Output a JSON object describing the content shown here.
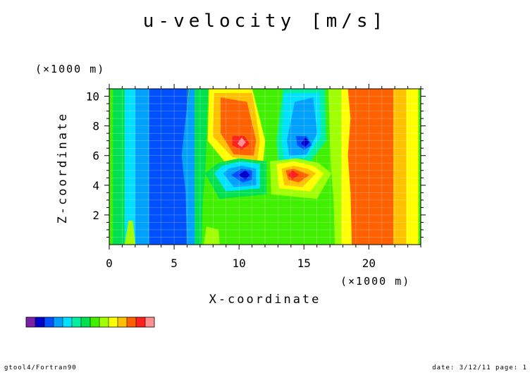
{
  "chart_data": {
    "type": "heatmap",
    "title": "u-velocity [m/s]",
    "xlabel": "X-coordinate",
    "ylabel": "Z-coordinate",
    "x_unit": "(×1000 m)",
    "y_unit": "(×1000 m)",
    "xlim": [
      0,
      24
    ],
    "ylim": [
      0,
      10.5
    ],
    "x_ticks": [
      "0",
      "5",
      "10",
      "15",
      "20"
    ],
    "y_ticks": [
      "2",
      "4",
      "6",
      "8",
      "10"
    ],
    "grid": true,
    "palette": [
      "#7a1fa8",
      "#0000c8",
      "#0050ff",
      "#00a0ff",
      "#00e0ff",
      "#00f0a0",
      "#00e050",
      "#40f000",
      "#a0ff00",
      "#ffff00",
      "#ffc000",
      "#ff6000",
      "#ff2020",
      "#ff9090"
    ],
    "background_level": 7,
    "regions": [
      {
        "level": 6,
        "points": [
          [
            0.3,
            0
          ],
          [
            1.4,
            0
          ],
          [
            1.4,
            10.5
          ],
          [
            0.3,
            10.5
          ]
        ]
      },
      {
        "level": 4,
        "points": [
          [
            1.2,
            0
          ],
          [
            2.2,
            0
          ],
          [
            2.2,
            10.5
          ],
          [
            1.2,
            10.5
          ]
        ]
      },
      {
        "level": 3,
        "points": [
          [
            2.0,
            0
          ],
          [
            3.2,
            0
          ],
          [
            3.2,
            10.5
          ],
          [
            2.0,
            10.5
          ]
        ]
      },
      {
        "level": 2,
        "points": [
          [
            3.1,
            0
          ],
          [
            6.0,
            0
          ],
          [
            5.9,
            3.5
          ],
          [
            5.6,
            6
          ],
          [
            5.9,
            8.5
          ],
          [
            6.1,
            10.5
          ],
          [
            3.1,
            10.5
          ]
        ]
      },
      {
        "level": 3,
        "points": [
          [
            6.0,
            0
          ],
          [
            6.7,
            0
          ],
          [
            6.7,
            10.5
          ],
          [
            6.2,
            10.5
          ],
          [
            5.9,
            8.5
          ],
          [
            5.6,
            6
          ],
          [
            5.9,
            3.5
          ]
        ]
      },
      {
        "level": 6,
        "points": [
          [
            6.6,
            0
          ],
          [
            7.1,
            0
          ],
          [
            7.2,
            3
          ],
          [
            7.4,
            5.2
          ],
          [
            7.6,
            10.5
          ],
          [
            6.6,
            10.5
          ]
        ]
      },
      {
        "level": 8,
        "points": [
          [
            17.4,
            0
          ],
          [
            17.9,
            0
          ],
          [
            17.9,
            10.5
          ],
          [
            16.9,
            10.5
          ],
          [
            17.1,
            5.2
          ],
          [
            17.3,
            3
          ]
        ]
      },
      {
        "level": 9,
        "points": [
          [
            17.9,
            0
          ],
          [
            18.7,
            0
          ],
          [
            18.6,
            3.5
          ],
          [
            18.4,
            6
          ],
          [
            18.6,
            8.5
          ],
          [
            18.4,
            10.5
          ],
          [
            17.9,
            10.5
          ]
        ]
      },
      {
        "level": 11,
        "points": [
          [
            18.7,
            0
          ],
          [
            21.9,
            0
          ],
          [
            21.9,
            10.5
          ],
          [
            18.4,
            10.5
          ],
          [
            18.6,
            8.5
          ],
          [
            18.4,
            6
          ],
          [
            18.6,
            3.5
          ]
        ]
      },
      {
        "level": 10,
        "points": [
          [
            21.9,
            0
          ],
          [
            22.9,
            0
          ],
          [
            22.9,
            10.5
          ],
          [
            21.9,
            10.5
          ]
        ]
      },
      {
        "level": 9,
        "points": [
          [
            22.9,
            0
          ],
          [
            23.8,
            0
          ],
          [
            23.8,
            10.5
          ],
          [
            22.9,
            10.5
          ]
        ]
      },
      {
        "level": 8,
        "points": [
          [
            1.2,
            0
          ],
          [
            2.0,
            0
          ],
          [
            1.8,
            1.6
          ],
          [
            1.5,
            1.6
          ]
        ]
      },
      {
        "level": 8,
        "points": [
          [
            7.3,
            0
          ],
          [
            8.5,
            0
          ],
          [
            8.4,
            1.0
          ],
          [
            7.5,
            1.2
          ]
        ]
      },
      {
        "level": 9,
        "points": [
          [
            7.6,
            7.0
          ],
          [
            9.0,
            5.5
          ],
          [
            11.8,
            5.2
          ],
          [
            12.0,
            7.0
          ],
          [
            11.0,
            10.5
          ],
          [
            7.7,
            10.5
          ]
        ]
      },
      {
        "level": 10,
        "points": [
          [
            8.0,
            7.3
          ],
          [
            9.5,
            5.9
          ],
          [
            11.4,
            5.7
          ],
          [
            11.6,
            7.0
          ],
          [
            11.0,
            10.2
          ],
          [
            8.1,
            10.2
          ]
        ]
      },
      {
        "level": 11,
        "points": [
          [
            8.6,
            7.5
          ],
          [
            9.6,
            6.1
          ],
          [
            11.1,
            6.0
          ],
          [
            11.3,
            7.0
          ],
          [
            10.6,
            9.6
          ],
          [
            8.6,
            9.9
          ]
        ]
      },
      {
        "level": 12,
        "points": [
          [
            9.5,
            6.7
          ],
          [
            10.2,
            6.4
          ],
          [
            10.8,
            6.8
          ],
          [
            10.4,
            7.3
          ],
          [
            9.5,
            7.3
          ]
        ]
      },
      {
        "level": 13,
        "points": [
          [
            9.9,
            6.8
          ],
          [
            10.2,
            6.6
          ],
          [
            10.5,
            6.9
          ],
          [
            10.2,
            7.2
          ]
        ]
      },
      {
        "level": 5,
        "points": [
          [
            12.9,
            7.0
          ],
          [
            13.1,
            5.2
          ],
          [
            15.4,
            5.5
          ],
          [
            16.7,
            7.0
          ],
          [
            16.6,
            10.5
          ],
          [
            13.4,
            10.5
          ]
        ]
      },
      {
        "level": 4,
        "points": [
          [
            13.3,
            7.0
          ],
          [
            13.5,
            5.7
          ],
          [
            15.2,
            5.9
          ],
          [
            16.3,
            7.3
          ],
          [
            16.2,
            10.2
          ],
          [
            13.5,
            10.2
          ]
        ]
      },
      {
        "level": 3,
        "points": [
          [
            13.7,
            7.0
          ],
          [
            13.9,
            6.0
          ],
          [
            15.2,
            6.1
          ],
          [
            16.0,
            7.5
          ],
          [
            15.7,
            9.9
          ],
          [
            14.3,
            9.6
          ]
        ]
      },
      {
        "level": 2,
        "points": [
          [
            14.5,
            6.7
          ],
          [
            15.0,
            6.4
          ],
          [
            15.6,
            6.7
          ],
          [
            15.2,
            7.3
          ],
          [
            14.4,
            7.3
          ]
        ]
      },
      {
        "level": 1,
        "points": [
          [
            14.8,
            6.8
          ],
          [
            15.1,
            6.6
          ],
          [
            15.4,
            6.9
          ],
          [
            15.1,
            7.2
          ]
        ]
      },
      {
        "level": 6,
        "points": [
          [
            7.4,
            4.8
          ],
          [
            8.5,
            3.1
          ],
          [
            12.1,
            3.4
          ],
          [
            12.1,
            5.6
          ],
          [
            10.0,
            5.8
          ],
          [
            8.4,
            5.5
          ]
        ]
      },
      {
        "level": 4,
        "points": [
          [
            8.1,
            4.8
          ],
          [
            9.0,
            3.6
          ],
          [
            11.6,
            3.8
          ],
          [
            11.6,
            5.4
          ],
          [
            10.2,
            5.6
          ],
          [
            8.7,
            5.3
          ]
        ]
      },
      {
        "level": 3,
        "points": [
          [
            8.8,
            4.8
          ],
          [
            9.6,
            3.9
          ],
          [
            11.3,
            4.0
          ],
          [
            11.3,
            5.1
          ],
          [
            10.2,
            5.3
          ],
          [
            9.2,
            5.1
          ]
        ]
      },
      {
        "level": 2,
        "points": [
          [
            9.4,
            4.7
          ],
          [
            10.3,
            4.2
          ],
          [
            11.0,
            4.4
          ],
          [
            11.0,
            5.0
          ],
          [
            10.2,
            5.1
          ]
        ]
      },
      {
        "level": 1,
        "points": [
          [
            10.0,
            4.7
          ],
          [
            10.5,
            4.4
          ],
          [
            10.8,
            4.7
          ],
          [
            10.5,
            5.0
          ]
        ]
      },
      {
        "level": 8,
        "points": [
          [
            12.4,
            5.6
          ],
          [
            12.5,
            3.4
          ],
          [
            16.0,
            3.1
          ],
          [
            17.1,
            4.8
          ],
          [
            16.1,
            5.5
          ],
          [
            14.4,
            5.8
          ]
        ]
      },
      {
        "level": 9,
        "points": [
          [
            12.9,
            5.4
          ],
          [
            13.1,
            3.8
          ],
          [
            15.5,
            3.6
          ],
          [
            16.5,
            4.8
          ],
          [
            15.7,
            5.3
          ],
          [
            14.2,
            5.6
          ]
        ]
      },
      {
        "level": 10,
        "points": [
          [
            13.3,
            5.1
          ],
          [
            13.5,
            4.0
          ],
          [
            14.9,
            3.9
          ],
          [
            15.9,
            4.8
          ],
          [
            15.3,
            5.1
          ],
          [
            14.2,
            5.3
          ]
        ]
      },
      {
        "level": 11,
        "points": [
          [
            13.6,
            5.0
          ],
          [
            13.8,
            4.4
          ],
          [
            14.6,
            4.2
          ],
          [
            15.4,
            4.7
          ],
          [
            14.2,
            5.1
          ]
        ]
      },
      {
        "level": 12,
        "points": [
          [
            13.8,
            4.7
          ],
          [
            14.1,
            4.4
          ],
          [
            14.6,
            4.7
          ],
          [
            14.1,
            5.0
          ]
        ]
      }
    ],
    "colorbar_levels": [
      0,
      1,
      2,
      3,
      4,
      5,
      6,
      7,
      8,
      9,
      10,
      11,
      12,
      13
    ]
  },
  "footer": {
    "left": "gtool4/Fortran90",
    "right": "date: 3/12/11 page: 1"
  }
}
